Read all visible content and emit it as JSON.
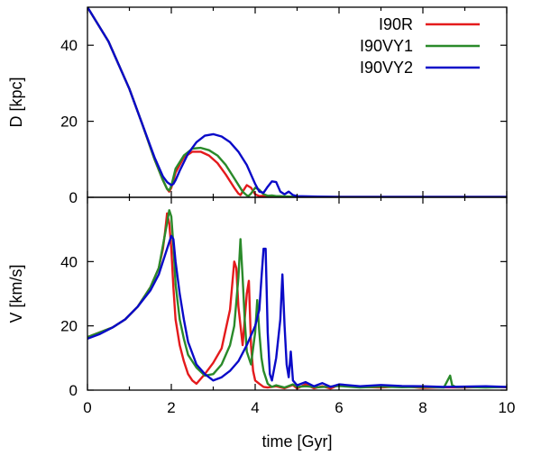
{
  "chart_data": [
    {
      "type": "line",
      "panel": "top",
      "ylabel": "D [kpc]",
      "xlabel": "",
      "xlim": [
        0,
        10
      ],
      "ylim": [
        0,
        50
      ],
      "yticks": [
        0,
        20,
        40
      ],
      "xticks": [
        0,
        2,
        4,
        6,
        8,
        10
      ],
      "show_xtick_labels": false,
      "grid": false,
      "legend_position": "top-right",
      "series": [
        {
          "name": "I90R",
          "color": "#e41a1c",
          "x": [
            0,
            0.5,
            1.0,
            1.3,
            1.6,
            1.8,
            1.9,
            1.95,
            2.0,
            2.1,
            2.3,
            2.5,
            2.7,
            2.9,
            3.1,
            3.3,
            3.5,
            3.6,
            3.65,
            3.7,
            3.8,
            3.9,
            4.0,
            4.1,
            4.2,
            4.3,
            4.5,
            5,
            6,
            7,
            8,
            9,
            10
          ],
          "y": [
            50,
            41,
            28.5,
            19.5,
            10,
            4.5,
            2.2,
            1.5,
            2.5,
            6.5,
            10.5,
            12,
            12,
            11,
            9,
            6,
            2.5,
            1,
            0.6,
            1.5,
            3.2,
            2.5,
            0.8,
            0.3,
            0.4,
            0.2,
            0.2,
            0.1,
            0.1,
            0.1,
            0.1,
            0.1,
            0.1
          ]
        },
        {
          "name": "I90VY1",
          "color": "#2a8a2a",
          "x": [
            0,
            0.5,
            1.0,
            1.3,
            1.6,
            1.8,
            1.9,
            1.95,
            2.0,
            2.1,
            2.3,
            2.5,
            2.7,
            2.9,
            3.1,
            3.3,
            3.5,
            3.7,
            3.8,
            3.85,
            3.9,
            4.0,
            4.1,
            4.2,
            4.3,
            4.4,
            4.5,
            4.6,
            5,
            6,
            7,
            8,
            9,
            10
          ],
          "y": [
            50,
            41,
            28.5,
            19.5,
            10,
            4.5,
            2.2,
            1.8,
            3,
            7.5,
            11,
            12.8,
            13,
            12.4,
            11,
            8.5,
            5,
            1.5,
            0.5,
            0.4,
            1,
            2.5,
            2,
            0.8,
            0.4,
            0.5,
            0.3,
            0.3,
            0.1,
            0.1,
            0.1,
            0.1,
            0.1,
            0.1
          ]
        },
        {
          "name": "I90VY2",
          "color": "#0a0ac8",
          "x": [
            0,
            0.5,
            1.0,
            1.3,
            1.6,
            1.8,
            1.9,
            2.0,
            2.05,
            2.1,
            2.2,
            2.4,
            2.6,
            2.8,
            3.0,
            3.2,
            3.4,
            3.6,
            3.8,
            4.0,
            4.1,
            4.2,
            4.3,
            4.4,
            4.5,
            4.6,
            4.7,
            4.8,
            4.9,
            5.0,
            5.5,
            6,
            7,
            8,
            9,
            10
          ],
          "y": [
            50,
            41,
            28.5,
            19.5,
            10.5,
            5.5,
            4,
            3.2,
            3.5,
            4.5,
            7,
            11.5,
            14.5,
            16.2,
            16.6,
            16,
            14.5,
            12,
            8.5,
            3.5,
            1.5,
            1.2,
            2.8,
            4.2,
            4,
            1.5,
            0.8,
            1.5,
            0.6,
            0.3,
            0.2,
            0.1,
            0.1,
            0.1,
            0.1,
            0.1
          ]
        }
      ]
    },
    {
      "type": "line",
      "panel": "bottom",
      "ylabel": "V [km/s]",
      "xlabel": "time [Gyr]",
      "xlim": [
        0,
        10
      ],
      "ylim": [
        0,
        60
      ],
      "yticks": [
        0,
        20,
        40
      ],
      "xticks": [
        0,
        2,
        4,
        6,
        8,
        10
      ],
      "show_xtick_labels": true,
      "grid": false,
      "series": [
        {
          "name": "I90R",
          "color": "#e41a1c",
          "x": [
            0,
            0.3,
            0.6,
            0.9,
            1.2,
            1.5,
            1.7,
            1.8,
            1.85,
            1.9,
            1.95,
            2.0,
            2.05,
            2.1,
            2.2,
            2.3,
            2.4,
            2.5,
            2.6,
            2.8,
            3.0,
            3.2,
            3.4,
            3.5,
            3.55,
            3.6,
            3.7,
            3.8,
            3.85,
            3.9,
            3.95,
            4.0,
            4.1,
            4.2,
            4.3,
            4.5,
            4.7,
            4.9,
            5.0,
            5.2,
            5.4,
            5.6,
            5.8,
            6.0,
            6.5,
            7,
            7.5,
            8,
            8.5,
            9,
            9.5,
            10
          ],
          "y": [
            16.5,
            18,
            19.5,
            22,
            26,
            32,
            38,
            44,
            49,
            55,
            52,
            44,
            32,
            22,
            14,
            9,
            5,
            3,
            2,
            5,
            8.5,
            13,
            25,
            40,
            38,
            26,
            14,
            30,
            34,
            14,
            6,
            3,
            2,
            1,
            0.8,
            1.2,
            0.6,
            1.6,
            0.5,
            1.8,
            0.6,
            1.2,
            0.5,
            1.6,
            1.0,
            0.8,
            1.2,
            0.7,
            0.9,
            0.8,
            1.0,
            0.9
          ]
        },
        {
          "name": "I90VY1",
          "color": "#2a8a2a",
          "x": [
            0,
            0.3,
            0.6,
            0.9,
            1.2,
            1.5,
            1.7,
            1.8,
            1.9,
            1.95,
            2.0,
            2.05,
            2.1,
            2.2,
            2.3,
            2.4,
            2.6,
            2.8,
            3.0,
            3.2,
            3.4,
            3.5,
            3.6,
            3.65,
            3.7,
            3.75,
            3.8,
            3.9,
            4.0,
            4.05,
            4.1,
            4.15,
            4.2,
            4.3,
            4.4,
            4.5,
            4.7,
            4.9,
            5.0,
            5.2,
            5.5,
            6,
            6.5,
            7,
            7.5,
            8,
            8.5,
            8.65,
            8.7,
            8.8,
            9,
            9.5,
            10
          ],
          "y": [
            16.5,
            18,
            19.5,
            22,
            26,
            32,
            38,
            45,
            52,
            56,
            54,
            45,
            33,
            22,
            16,
            11,
            7,
            4.5,
            5,
            8,
            14,
            20,
            35,
            47,
            35,
            22,
            12,
            8,
            18,
            28,
            18,
            10,
            6,
            2,
            1,
            1.5,
            0.8,
            1.8,
            1,
            1.2,
            0.9,
            1.3,
            0.8,
            1.1,
            0.9,
            1.0,
            0.8,
            4.5,
            1.5,
            0.9,
            1.0,
            0.8,
            1.0
          ]
        },
        {
          "name": "I90VY2",
          "color": "#0a0ac8",
          "x": [
            0,
            0.3,
            0.6,
            0.9,
            1.2,
            1.5,
            1.7,
            1.8,
            1.9,
            2.0,
            2.05,
            2.1,
            2.2,
            2.3,
            2.4,
            2.6,
            2.8,
            3.0,
            3.2,
            3.4,
            3.6,
            3.8,
            4.0,
            4.1,
            4.15,
            4.2,
            4.25,
            4.3,
            4.35,
            4.4,
            4.5,
            4.6,
            4.65,
            4.7,
            4.75,
            4.8,
            4.85,
            4.9,
            5.0,
            5.2,
            5.4,
            5.6,
            5.8,
            6,
            6.5,
            7,
            7.5,
            8,
            8.5,
            9,
            9.5,
            10
          ],
          "y": [
            16,
            17.5,
            19.5,
            22,
            26,
            31,
            36,
            40,
            44,
            48,
            47,
            40,
            30,
            22,
            15,
            8,
            5,
            3,
            4,
            6,
            9,
            14,
            20,
            25,
            35,
            44,
            44,
            18,
            5,
            3,
            10,
            22,
            36,
            20,
            8,
            4,
            12,
            3,
            1.5,
            2.5,
            1.2,
            2.2,
            1.0,
            1.8,
            1.2,
            1.6,
            1.3,
            1.2,
            1.0,
            1.1,
            1.2,
            1.0
          ]
        }
      ]
    }
  ]
}
